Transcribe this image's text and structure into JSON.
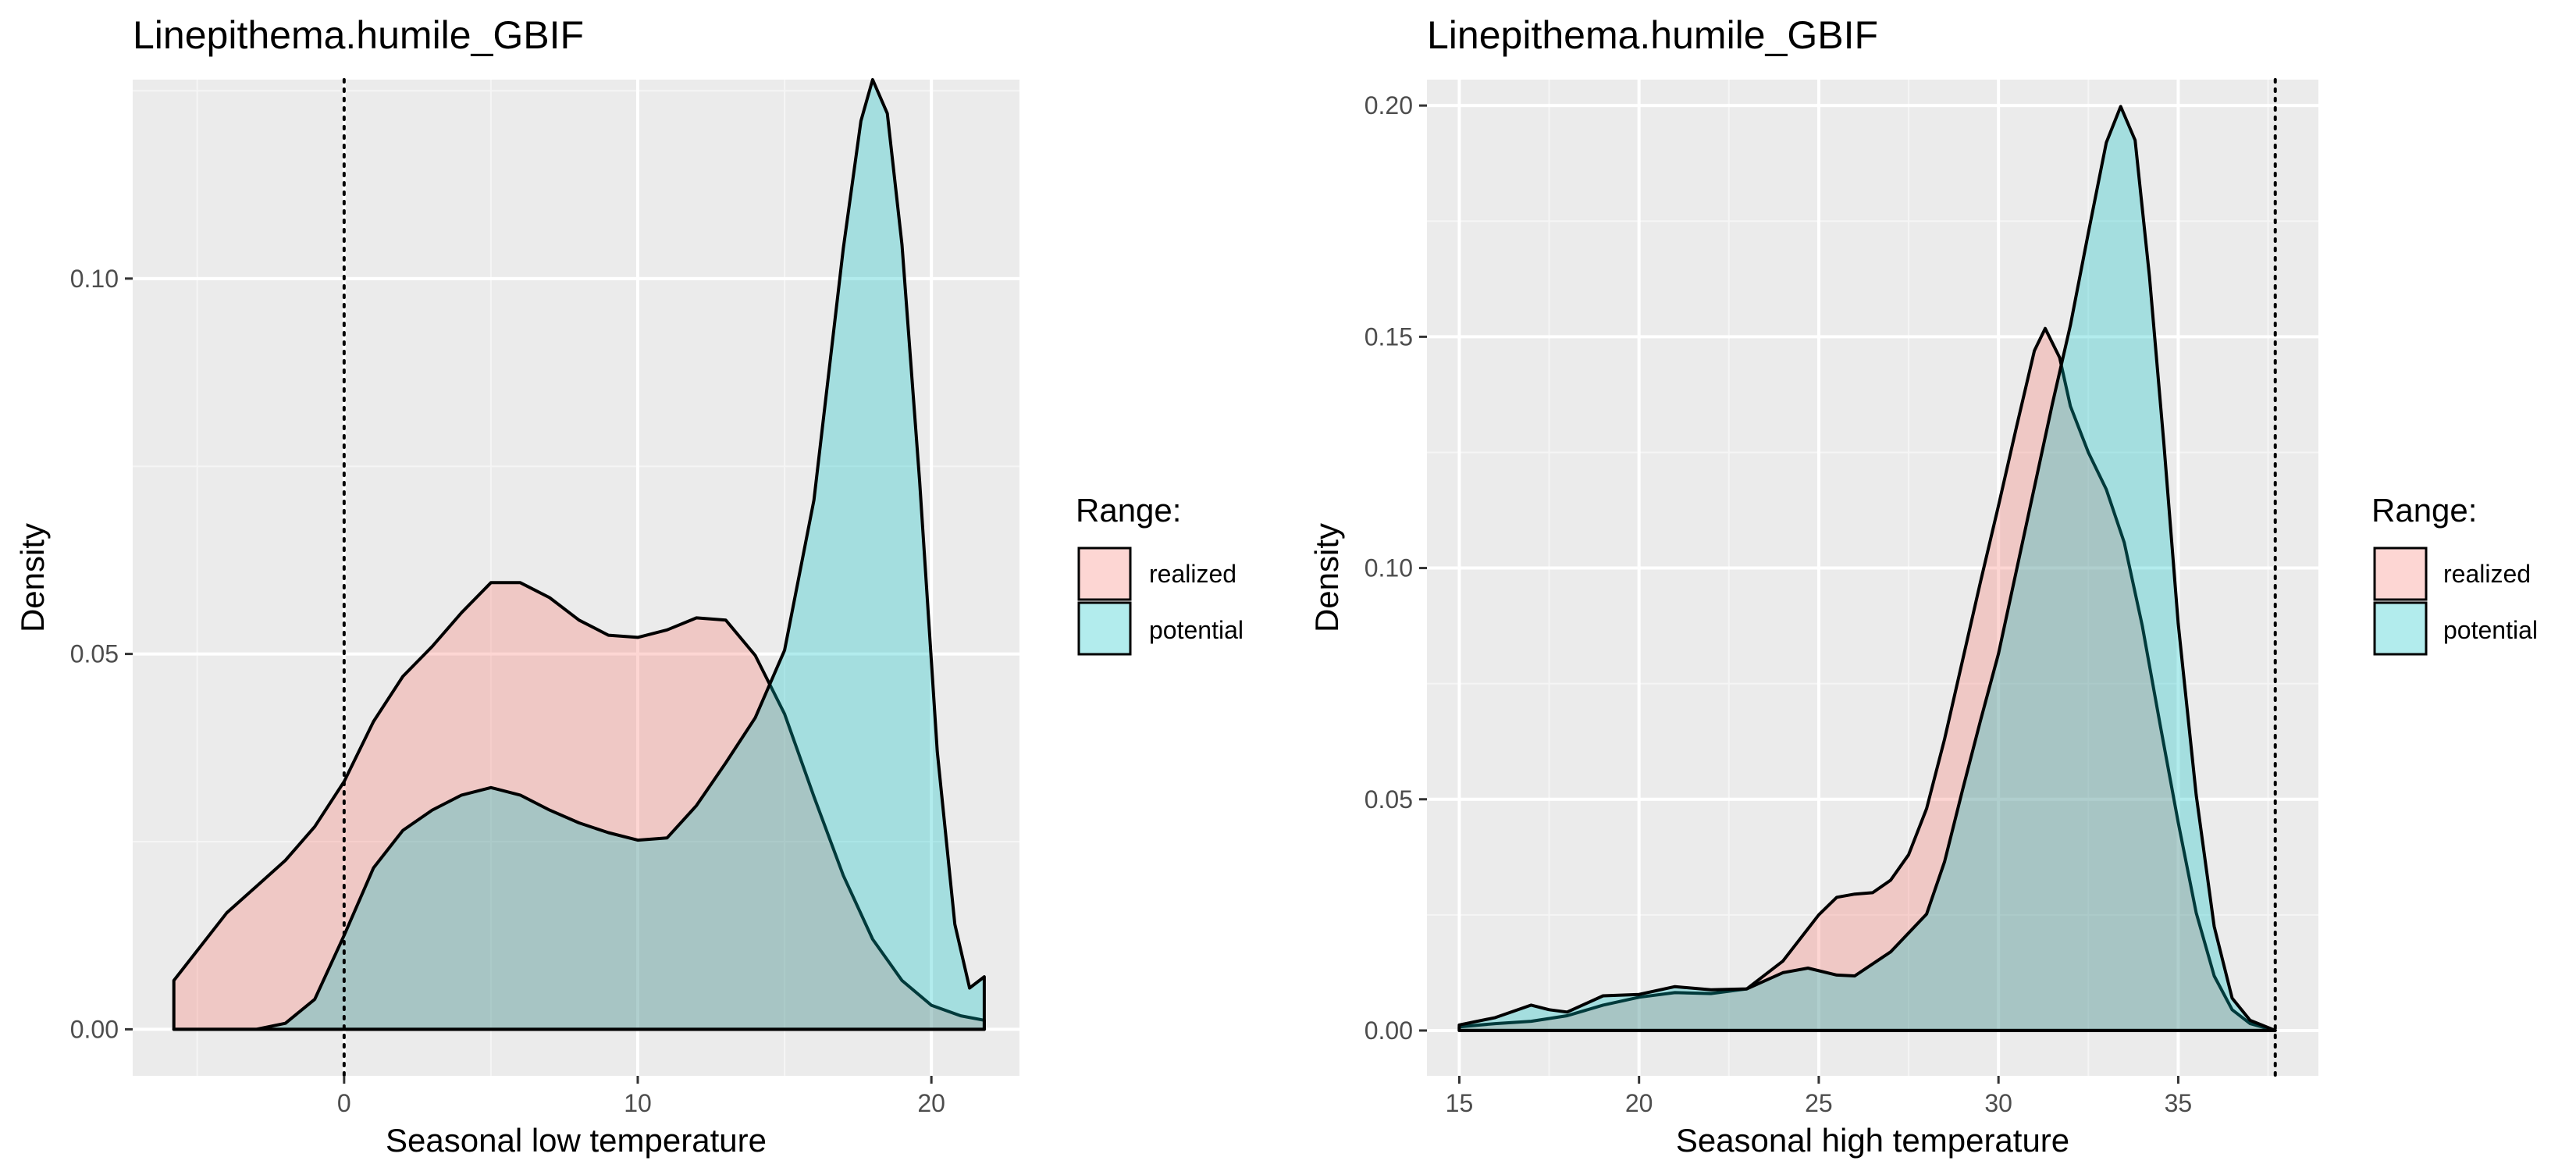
{
  "chart_data": [
    {
      "type": "area",
      "title": "Linepithema.humile_GBIF",
      "xlabel": "Seasonal low temperature",
      "ylabel": "Density",
      "xlim": [
        -7.2,
        23
      ],
      "ylim": [
        -0.0062,
        0.1265
      ],
      "x_ticks": [
        0,
        10,
        20
      ],
      "x_tick_labels": [
        "0",
        "10",
        "20"
      ],
      "y_ticks": [
        0.0,
        0.05,
        0.1
      ],
      "y_tick_labels": [
        "0.00",
        "0.05",
        "0.10"
      ],
      "grid": true,
      "vline": {
        "x": 0,
        "style": "dotted"
      },
      "legend": {
        "title": "Range:",
        "position": "right"
      },
      "series": [
        {
          "name": "realized",
          "color": "#F8766D",
          "points": [
            [
              -5.8,
              0.0
            ],
            [
              -5.8,
              0.0065
            ],
            [
              -5,
              0.0105
            ],
            [
              -4,
              0.0155
            ],
            [
              -3,
              0.019
            ],
            [
              -2,
              0.0225
            ],
            [
              -1,
              0.027
            ],
            [
              0,
              0.033
            ],
            [
              1,
              0.041
            ],
            [
              2,
              0.047
            ],
            [
              3,
              0.051
            ],
            [
              4,
              0.0555
            ],
            [
              5,
              0.0595
            ],
            [
              6,
              0.0595
            ],
            [
              7,
              0.0575
            ],
            [
              8,
              0.0545
            ],
            [
              9,
              0.0525
            ],
            [
              10,
              0.0522
            ],
            [
              11,
              0.0532
            ],
            [
              12,
              0.0548
            ],
            [
              13,
              0.0545
            ],
            [
              14,
              0.0498
            ],
            [
              15,
              0.042
            ],
            [
              16,
              0.031
            ],
            [
              17,
              0.0205
            ],
            [
              18,
              0.012
            ],
            [
              19,
              0.0065
            ],
            [
              20,
              0.0032
            ],
            [
              21,
              0.0018
            ],
            [
              21.8,
              0.0012
            ],
            [
              21.8,
              0.0
            ]
          ]
        },
        {
          "name": "potential",
          "color": "#00BFC4",
          "points": [
            [
              -5.8,
              0.0
            ],
            [
              -3,
              0.0
            ],
            [
              -2,
              0.0008
            ],
            [
              -1,
              0.004
            ],
            [
              0,
              0.0125
            ],
            [
              1,
              0.0215
            ],
            [
              2,
              0.0265
            ],
            [
              3,
              0.0292
            ],
            [
              4,
              0.0312
            ],
            [
              5,
              0.0322
            ],
            [
              6,
              0.0312
            ],
            [
              7,
              0.0292
            ],
            [
              8,
              0.0275
            ],
            [
              9,
              0.0262
            ],
            [
              10,
              0.0252
            ],
            [
              11,
              0.0255
            ],
            [
              12,
              0.0298
            ],
            [
              13,
              0.0355
            ],
            [
              14,
              0.0415
            ],
            [
              15,
              0.0505
            ],
            [
              16,
              0.0705
            ],
            [
              17,
              0.104
            ],
            [
              17.6,
              0.121
            ],
            [
              18,
              0.1265
            ],
            [
              18.5,
              0.122
            ],
            [
              19,
              0.1045
            ],
            [
              19.6,
              0.073
            ],
            [
              20.2,
              0.037
            ],
            [
              20.8,
              0.014
            ],
            [
              21.3,
              0.0055
            ],
            [
              21.8,
              0.007
            ],
            [
              21.8,
              0.0
            ]
          ]
        }
      ]
    },
    {
      "type": "area",
      "title": "Linepithema.humile_GBIF",
      "xlabel": "Seasonal high temperature",
      "ylabel": "Density",
      "xlim": [
        14.1,
        38.9
      ],
      "ylim": [
        -0.0098,
        0.2056
      ],
      "x_ticks": [
        15,
        20,
        25,
        30,
        35
      ],
      "x_tick_labels": [
        "15",
        "20",
        "25",
        "30",
        "35"
      ],
      "y_ticks": [
        0.0,
        0.05,
        0.1,
        0.15,
        0.2
      ],
      "y_tick_labels": [
        "0.00",
        "0.05",
        "0.10",
        "0.15",
        "0.20"
      ],
      "grid": true,
      "vline": {
        "x": 37.7,
        "style": "dotted"
      },
      "legend": {
        "title": "Range:",
        "position": "right"
      },
      "series": [
        {
          "name": "realized",
          "color": "#F8766D",
          "points": [
            [
              15,
              0.0
            ],
            [
              15,
              0.0008
            ],
            [
              16,
              0.0015
            ],
            [
              17,
              0.002
            ],
            [
              18,
              0.0032
            ],
            [
              19,
              0.0055
            ],
            [
              20,
              0.0072
            ],
            [
              21,
              0.0082
            ],
            [
              22,
              0.008
            ],
            [
              23,
              0.009
            ],
            [
              24,
              0.015
            ],
            [
              25,
              0.025
            ],
            [
              25.5,
              0.0288
            ],
            [
              26,
              0.0295
            ],
            [
              26.5,
              0.0298
            ],
            [
              27,
              0.0325
            ],
            [
              27.5,
              0.038
            ],
            [
              28,
              0.048
            ],
            [
              28.5,
              0.063
            ],
            [
              29,
              0.08
            ],
            [
              29.5,
              0.097
            ],
            [
              30,
              0.1135
            ],
            [
              30.5,
              0.1305
            ],
            [
              31,
              0.147
            ],
            [
              31.3,
              0.1518
            ],
            [
              31.7,
              0.1455
            ],
            [
              32,
              0.135
            ],
            [
              32.5,
              0.125
            ],
            [
              33,
              0.117
            ],
            [
              33.5,
              0.1055
            ],
            [
              34,
              0.0875
            ],
            [
              34.5,
              0.066
            ],
            [
              35,
              0.045
            ],
            [
              35.5,
              0.0255
            ],
            [
              36,
              0.0118
            ],
            [
              36.5,
              0.0045
            ],
            [
              37,
              0.0015
            ],
            [
              37.7,
              0.0
            ],
            [
              15,
              0.0
            ]
          ]
        },
        {
          "name": "potential",
          "color": "#00BFC4",
          "points": [
            [
              15,
              0.0
            ],
            [
              15,
              0.0012
            ],
            [
              16,
              0.0028
            ],
            [
              17,
              0.0055
            ],
            [
              17.5,
              0.0045
            ],
            [
              18,
              0.004
            ],
            [
              19,
              0.0075
            ],
            [
              20,
              0.0078
            ],
            [
              21,
              0.0095
            ],
            [
              22,
              0.0088
            ],
            [
              23,
              0.009
            ],
            [
              24,
              0.0125
            ],
            [
              24.7,
              0.0135
            ],
            [
              25.5,
              0.012
            ],
            [
              26,
              0.0118
            ],
            [
              27,
              0.017
            ],
            [
              28,
              0.0252
            ],
            [
              28.5,
              0.0365
            ],
            [
              29,
              0.052
            ],
            [
              29.5,
              0.067
            ],
            [
              30,
              0.0815
            ],
            [
              30.5,
              0.0995
            ],
            [
              31,
              0.1175
            ],
            [
              31.5,
              0.1355
            ],
            [
              32,
              0.1525
            ],
            [
              32.5,
              0.1725
            ],
            [
              33,
              0.192
            ],
            [
              33.4,
              0.1998
            ],
            [
              33.8,
              0.1925
            ],
            [
              34.2,
              0.163
            ],
            [
              34.6,
              0.127
            ],
            [
              35,
              0.088
            ],
            [
              35.5,
              0.051
            ],
            [
              36,
              0.0225
            ],
            [
              36.5,
              0.007
            ],
            [
              37,
              0.0022
            ],
            [
              37.7,
              0.0
            ],
            [
              15,
              0.0
            ]
          ]
        }
      ]
    }
  ]
}
